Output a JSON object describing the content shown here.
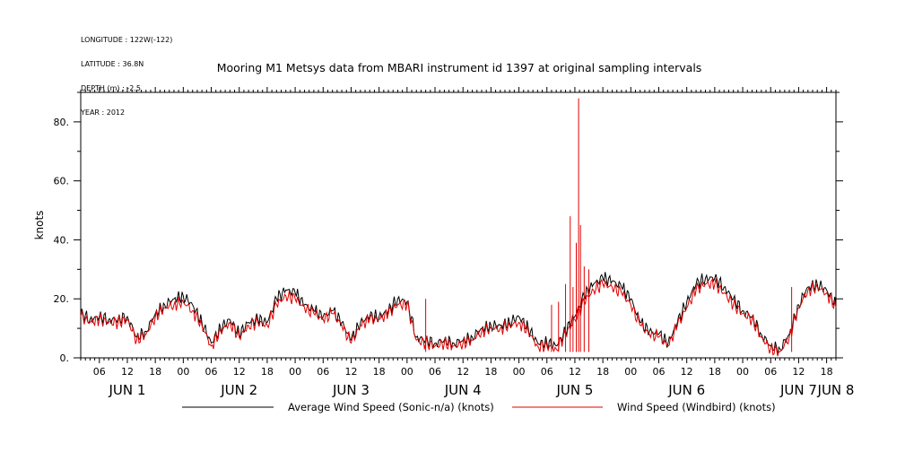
{
  "meta_lines": [
    "LONGITUDE : 122W(-122)",
    "LATITUDE : 36.8N",
    "DEPTH (m) : -2.5",
    "YEAR : 2012"
  ],
  "chart_data": {
    "type": "line",
    "title": "Mooring M1 Metsys data from MBARI instrument id 1397 at original sampling intervals",
    "ylabel": "knots",
    "xlabel": "",
    "ylim": [
      0,
      90
    ],
    "yticks": [
      0,
      20,
      40,
      60,
      80
    ],
    "ytick_labels": [
      "0.",
      "20.",
      "40.",
      "60.",
      "80."
    ],
    "xlim_hours": [
      2,
      164
    ],
    "hour_tick_labels": [
      {
        "h": 6,
        "label": "06"
      },
      {
        "h": 12,
        "label": "12"
      },
      {
        "h": 18,
        "label": "18"
      },
      {
        "h": 24,
        "label": "00"
      },
      {
        "h": 30,
        "label": "06"
      },
      {
        "h": 36,
        "label": "12"
      },
      {
        "h": 42,
        "label": "18"
      },
      {
        "h": 48,
        "label": "00"
      },
      {
        "h": 54,
        "label": "06"
      },
      {
        "h": 60,
        "label": "12"
      },
      {
        "h": 66,
        "label": "18"
      },
      {
        "h": 72,
        "label": "00"
      },
      {
        "h": 78,
        "label": "06"
      },
      {
        "h": 84,
        "label": "12"
      },
      {
        "h": 90,
        "label": "18"
      },
      {
        "h": 96,
        "label": "00"
      },
      {
        "h": 102,
        "label": "06"
      },
      {
        "h": 108,
        "label": "12"
      },
      {
        "h": 114,
        "label": "18"
      },
      {
        "h": 120,
        "label": "00"
      },
      {
        "h": 126,
        "label": "06"
      },
      {
        "h": 132,
        "label": "12"
      },
      {
        "h": 138,
        "label": "18"
      },
      {
        "h": 144,
        "label": "00"
      },
      {
        "h": 150,
        "label": "06"
      },
      {
        "h": 156,
        "label": "12"
      },
      {
        "h": 162,
        "label": "18"
      }
    ],
    "day_labels": [
      {
        "h": 12,
        "label": "JUN  1"
      },
      {
        "h": 36,
        "label": "JUN  2"
      },
      {
        "h": 60,
        "label": "JUN  3"
      },
      {
        "h": 84,
        "label": "JUN  4"
      },
      {
        "h": 108,
        "label": "JUN  5"
      },
      {
        "h": 132,
        "label": "JUN  6"
      },
      {
        "h": 156,
        "label": "JUN  7"
      },
      {
        "h": 164,
        "label": "JUN  8"
      }
    ],
    "series": [
      {
        "name": "Average Wind Speed (Sonic-n/a) (knots)",
        "color": "#000000",
        "x": [
          2,
          4,
          6,
          8,
          10,
          12,
          14,
          16,
          18,
          20,
          22,
          24,
          26,
          28,
          30,
          32,
          34,
          36,
          38,
          40,
          42,
          44,
          46,
          48,
          50,
          52,
          54,
          56,
          58,
          60,
          62,
          64,
          66,
          68,
          70,
          72,
          74,
          76,
          78,
          80,
          82,
          84,
          86,
          88,
          90,
          92,
          94,
          96,
          98,
          100,
          102,
          104,
          106,
          108,
          110,
          112,
          114,
          116,
          118,
          120,
          122,
          124,
          126,
          128,
          130,
          132,
          134,
          136,
          138,
          140,
          142,
          144,
          146,
          148,
          150,
          152,
          154,
          156,
          158,
          160,
          162,
          164
        ],
        "y": [
          15,
          13,
          14,
          13,
          13,
          14,
          7,
          9,
          15,
          18,
          20,
          21,
          18,
          12,
          5,
          10,
          13,
          8,
          12,
          13,
          12,
          20,
          23,
          22,
          18,
          16,
          14,
          16,
          12,
          6,
          12,
          14,
          14,
          16,
          20,
          19,
          7,
          6,
          5,
          6,
          5,
          6,
          7,
          10,
          11,
          11,
          12,
          14,
          10,
          5,
          5,
          4,
          9,
          14,
          21,
          25,
          27,
          26,
          24,
          20,
          12,
          9,
          8,
          5,
          12,
          19,
          25,
          27,
          27,
          24,
          20,
          16,
          14,
          8,
          4,
          3,
          8,
          18,
          24,
          25,
          23,
          18
        ]
      },
      {
        "name": "Wind Speed (Windbird) (knots)",
        "color": "#e00000",
        "x": [
          2,
          4,
          6,
          8,
          10,
          12,
          14,
          16,
          18,
          20,
          22,
          24,
          26,
          28,
          30,
          32,
          34,
          36,
          38,
          40,
          42,
          44,
          46,
          48,
          50,
          52,
          54,
          56,
          58,
          60,
          62,
          64,
          66,
          68,
          70,
          72,
          74,
          76,
          78,
          80,
          82,
          84,
          86,
          88,
          90,
          92,
          94,
          96,
          98,
          100,
          102,
          104,
          106,
          108,
          110,
          112,
          114,
          116,
          118,
          120,
          122,
          124,
          126,
          128,
          130,
          132,
          134,
          136,
          138,
          140,
          142,
          144,
          146,
          148,
          150,
          152,
          154,
          156,
          158,
          160,
          162,
          164
        ],
        "y": [
          14,
          12,
          13,
          12,
          12,
          13,
          6,
          8,
          14,
          17,
          18,
          19,
          16,
          11,
          4,
          9,
          12,
          7,
          11,
          12,
          11,
          18,
          21,
          20,
          17,
          15,
          13,
          15,
          11,
          5,
          11,
          13,
          13,
          15,
          18,
          18,
          6,
          5,
          4,
          5,
          4,
          5,
          6,
          9,
          10,
          10,
          11,
          12,
          9,
          4,
          4,
          3,
          8,
          13,
          19,
          23,
          25,
          24,
          22,
          18,
          11,
          8,
          7,
          4,
          11,
          17,
          23,
          25,
          25,
          22,
          18,
          15,
          13,
          7,
          3,
          2,
          7,
          17,
          23,
          24,
          22,
          17
        ],
        "spikes": [
          {
            "x": 106.0,
            "y": 25
          },
          {
            "x": 107.0,
            "y": 48
          },
          {
            "x": 107.6,
            "y": 24
          },
          {
            "x": 108.3,
            "y": 39
          },
          {
            "x": 108.8,
            "y": 88
          },
          {
            "x": 109.2,
            "y": 45
          },
          {
            "x": 110.0,
            "y": 31
          },
          {
            "x": 111.0,
            "y": 30
          },
          {
            "x": 104.5,
            "y": 19
          },
          {
            "x": 103.0,
            "y": 18
          },
          {
            "x": 76.0,
            "y": 20
          },
          {
            "x": 154.5,
            "y": 24
          }
        ]
      }
    ],
    "legend_placement": "bottom",
    "grid": false
  }
}
